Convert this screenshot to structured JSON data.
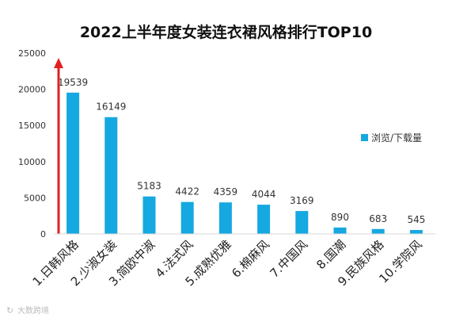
{
  "chart_data": {
    "type": "bar",
    "title": "2022上半年度女装连衣裙风格排行TOP10",
    "categories": [
      "1.日韩风格",
      "2.少淑女装",
      "3.简欧中淑",
      "4.法式风",
      "5.成熟优雅",
      "6.棉麻风",
      "7.中国风",
      "8.国潮",
      "9.民族风格",
      "10.学院风"
    ],
    "series": [
      {
        "name": "浏览/下载量",
        "values": [
          19539,
          16149,
          5183,
          4422,
          4359,
          4044,
          3169,
          890,
          683,
          545
        ],
        "color": "#16a8e0"
      }
    ],
    "ylim": [
      0,
      25000
    ],
    "yticks": [
      "0",
      "5000",
      "10000",
      "15000",
      "20000",
      "25000"
    ],
    "legend_position": "right",
    "grid": false,
    "arrow_color": "#e02020"
  },
  "watermark": "大数跨境"
}
